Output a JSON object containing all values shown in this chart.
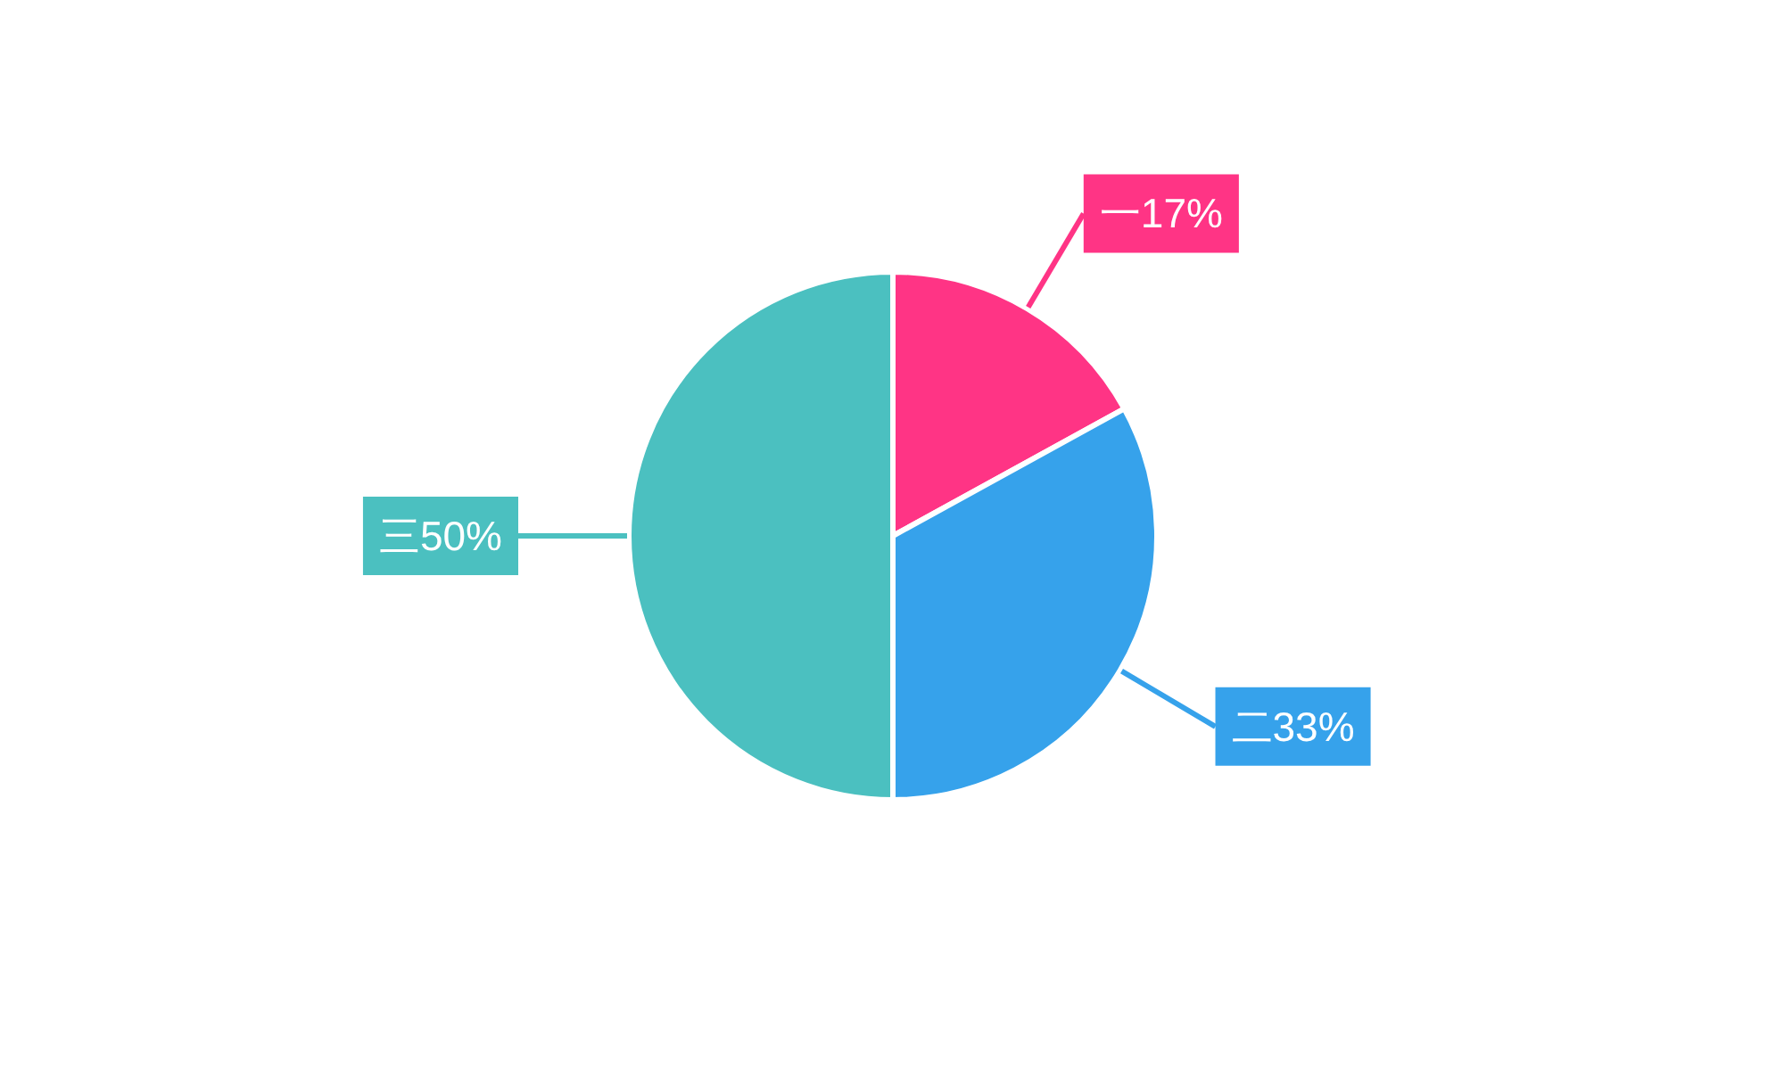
{
  "chart_data": {
    "type": "pie",
    "categories": [
      "一",
      "二",
      "三"
    ],
    "values": [
      17,
      33,
      50
    ],
    "colors": [
      "#ff3485",
      "#36a2eb",
      "#4bc0c0"
    ],
    "value_labels": [
      "17%",
      "33%",
      "50%"
    ]
  }
}
